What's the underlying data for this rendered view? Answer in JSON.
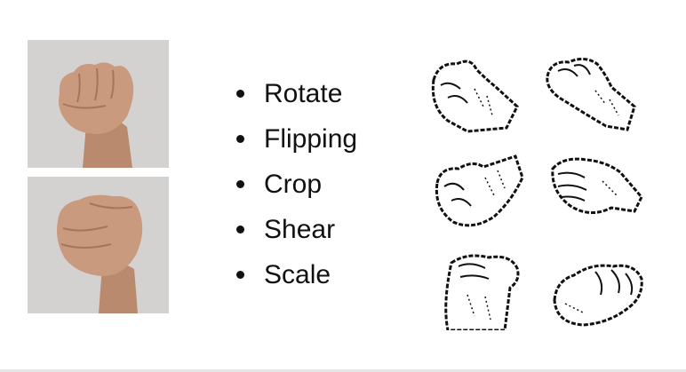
{
  "augmentations": {
    "items": [
      {
        "label": "Rotate"
      },
      {
        "label": "Flipping"
      },
      {
        "label": "Crop"
      },
      {
        "label": "Shear"
      },
      {
        "label": "Scale"
      }
    ]
  },
  "colors": {
    "skin": "#c99a7e",
    "skin_shadow": "#a8755a",
    "photo_bg": "#d4d2d0",
    "ink": "#111111"
  },
  "icons": {
    "fist_photo": "fist-photo",
    "fist_sketch": "fist-sketch"
  }
}
